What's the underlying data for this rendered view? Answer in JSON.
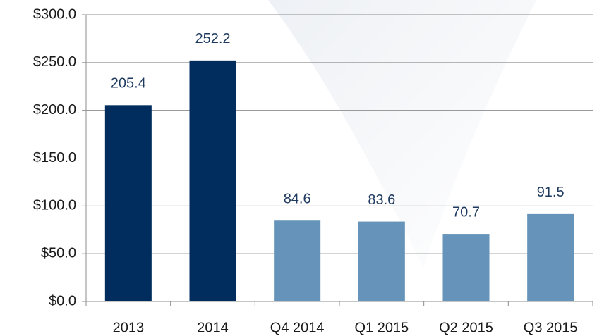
{
  "chart_data": {
    "type": "bar",
    "categories": [
      "2013",
      "2014",
      "Q4 2014",
      "Q1 2015",
      "Q2 2015",
      "Q3 2015"
    ],
    "values": [
      205.4,
      252.2,
      84.6,
      83.6,
      70.7,
      91.5
    ],
    "colors": [
      "#002d5e",
      "#002d5e",
      "#6593b9",
      "#6593b9",
      "#6593b9",
      "#6593b9"
    ],
    "ylim": [
      0,
      300
    ],
    "yticks": [
      {
        "value": 0,
        "label": "$0.0"
      },
      {
        "value": 50,
        "label": "$50.0"
      },
      {
        "value": 100,
        "label": "$100.0"
      },
      {
        "value": 150,
        "label": "$150.0"
      },
      {
        "value": 200,
        "label": "$200.0"
      },
      {
        "value": 250,
        "label": "$250.0"
      },
      {
        "value": 300,
        "label": "$300.0"
      }
    ],
    "grid": true
  }
}
